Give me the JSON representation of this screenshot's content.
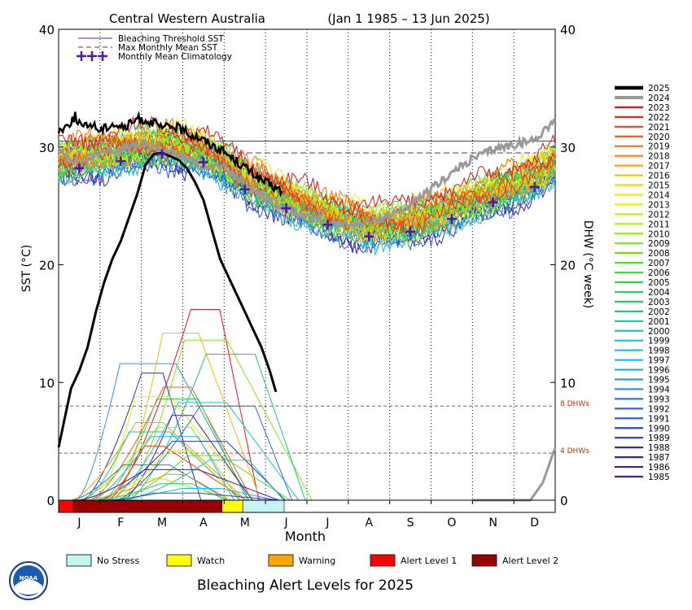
{
  "chart_data": {
    "type": "line",
    "title": "Central Western Australia",
    "date_range": "(Jan 1 1985 – 13 Jun 2025)",
    "xlabel": "Month",
    "ylabel_left": "SST (°C)",
    "ylabel_right": "DHW (°C week)",
    "ylim": [
      0,
      40
    ],
    "month_ticks": [
      "J",
      "F",
      "M",
      "A",
      "M",
      "J",
      "J",
      "A",
      "S",
      "O",
      "N",
      "D"
    ],
    "left_ticks": [
      "0",
      "10",
      "20",
      "30",
      "40"
    ],
    "right_ticks": [
      "0",
      "10",
      "20",
      "30",
      "40"
    ],
    "reference_lines": {
      "bleaching_threshold_sst": 30.5,
      "max_monthly_mean_sst": 29.5,
      "dhw_8_label": "8 DHWs",
      "dhw_8_value": 8,
      "dhw_4_label": "4 DHWs",
      "dhw_4_value": 4
    },
    "legend": [
      {
        "label": "Bleaching Threshold SST",
        "color": "#5a2aa8",
        "style": "solid"
      },
      {
        "label": "Max Monthly Mean SST",
        "color": "#5a2aa8",
        "style": "dashed"
      },
      {
        "label": "Monthly Mean Climatology",
        "color": "#4a1aa0",
        "style": "cross"
      }
    ],
    "monthly_mean_climatology": {
      "x": [
        0.5,
        1.5,
        2.5,
        3.5,
        4.5,
        5.5,
        6.5,
        7.5,
        8.5,
        9.5,
        10.5,
        11.5
      ],
      "y": [
        28.2,
        28.8,
        29.4,
        28.7,
        26.4,
        24.8,
        23.4,
        22.4,
        22.8,
        23.9,
        25.3,
        26.6
      ]
    },
    "year_legend": [
      "2025",
      "2024",
      "2023",
      "2022",
      "2021",
      "2020",
      "2019",
      "2018",
      "2017",
      "2016",
      "2015",
      "2014",
      "2013",
      "2012",
      "2011",
      "2010",
      "2009",
      "2008",
      "2007",
      "2006",
      "2005",
      "2004",
      "2003",
      "2002",
      "2001",
      "2000",
      "1999",
      "1998",
      "1997",
      "1996",
      "1995",
      "1994",
      "1993",
      "1992",
      "1991",
      "1990",
      "1989",
      "1988",
      "1987",
      "1986",
      "1985"
    ],
    "year_colors": [
      "#000000",
      "#999999",
      "#e8101a",
      "#ee2818",
      "#f04016",
      "#f25a14",
      "#f47012",
      "#f68a10",
      "#f8a20e",
      "#f8bc0c",
      "#f4d40a",
      "#f0ea08",
      "#e0f008",
      "#c8f00c",
      "#b0ee10",
      "#98ea14",
      "#80e618",
      "#68e21c",
      "#50de24",
      "#3cda34",
      "#2ed648",
      "#24d25c",
      "#1cce72",
      "#18ca8a",
      "#16c8a2",
      "#16c6ba",
      "#18c4d2",
      "#1cc2e6",
      "#20b8ee",
      "#24a8ec",
      "#2898ea",
      "#2a88e6",
      "#2a78e2",
      "#2a68dc",
      "#2a58d6",
      "#2a48d0",
      "#2a38ca",
      "#2c2ac4",
      "#3420be",
      "#3c1cb8",
      "#4418b2"
    ],
    "sst_2025": {
      "x": [
        0.0,
        0.2,
        0.4,
        0.6,
        0.8,
        1.0,
        1.3,
        1.6,
        1.9,
        2.2,
        2.5,
        2.8,
        3.1,
        3.4,
        3.7,
        4.0,
        4.3,
        4.6,
        4.9,
        5.2,
        5.4
      ],
      "y": [
        31.4,
        31.8,
        32.6,
        31.6,
        32.0,
        31.4,
        32.0,
        31.6,
        32.4,
        32.2,
        31.6,
        31.8,
        31.2,
        30.8,
        30.2,
        29.6,
        28.8,
        28.0,
        27.2,
        26.6,
        26.2
      ]
    },
    "sst_2024": {
      "x": [
        0.0,
        0.5,
        1.0,
        1.5,
        2.0,
        2.5,
        3.0,
        3.5,
        4.0,
        4.5,
        5.0,
        5.5,
        6.0,
        6.5,
        7.0,
        7.5,
        8.0,
        8.5,
        9.0,
        9.5,
        10.0,
        10.5,
        11.0,
        11.5,
        12.0
      ],
      "y": [
        29.6,
        28.6,
        29.6,
        29.8,
        30.2,
        29.8,
        29.2,
        28.6,
        28.2,
        26.8,
        25.8,
        24.8,
        24.0,
        23.6,
        23.4,
        23.6,
        24.2,
        25.0,
        26.4,
        27.8,
        29.0,
        29.8,
        30.2,
        30.6,
        32.4
      ]
    },
    "dhw_2025": {
      "x": [
        0.0,
        0.15,
        0.3,
        0.5,
        0.7,
        0.9,
        1.1,
        1.3,
        1.5,
        1.7,
        1.9,
        2.1,
        2.3,
        2.5,
        2.7,
        2.9,
        3.1,
        3.3,
        3.5,
        3.7,
        3.9,
        4.1,
        4.3,
        4.5,
        4.7,
        4.9,
        5.1,
        5.25
      ],
      "y": [
        4.5,
        7.0,
        9.5,
        11.0,
        13.0,
        16.0,
        18.5,
        20.5,
        22.0,
        24.0,
        26.0,
        28.5,
        29.4,
        29.5,
        29.2,
        28.9,
        28.2,
        27.0,
        25.5,
        23.0,
        20.5,
        19.0,
        17.5,
        16.0,
        14.5,
        13.0,
        11.0,
        9.2
      ]
    },
    "dhw_2024": {
      "x": [
        10.0,
        10.3,
        10.6,
        11.0,
        11.4,
        11.7,
        12.0
      ],
      "y": [
        0.0,
        0.0,
        0.0,
        0.0,
        0.0,
        1.5,
        4.5
      ]
    },
    "dhw_other_peaks": [
      16.2,
      14.2,
      13.6,
      12.4,
      11.6,
      10.8,
      9.6,
      8.8,
      8.6,
      8.3,
      8.0,
      7.2,
      6.6,
      6.2,
      5.8,
      5.4,
      5.0,
      4.6,
      4.2,
      3.8,
      3.4,
      3.0,
      2.6,
      2.2,
      1.8,
      1.4,
      1.0,
      0.6
    ],
    "alert_bar_2025": [
      {
        "from": 0.0,
        "to": 0.35,
        "level": "Alert Level 1"
      },
      {
        "from": 0.35,
        "to": 3.95,
        "level": "Alert Level 2"
      },
      {
        "from": 3.95,
        "to": 4.45,
        "level": "Watch"
      },
      {
        "from": 4.45,
        "to": 5.45,
        "level": "No Stress"
      }
    ]
  },
  "alert_legend": [
    {
      "label": "No Stress",
      "color": "#c4f4f4"
    },
    {
      "label": "Watch",
      "color": "#ffff00"
    },
    {
      "label": "Warning",
      "color": "#ffa500"
    },
    {
      "label": "Alert Level 1",
      "color": "#ff0000"
    },
    {
      "label": "Alert Level 2",
      "color": "#990000"
    }
  ],
  "bottom_title": "Bleaching Alert Levels for 2025",
  "logo_text": "NOAA"
}
